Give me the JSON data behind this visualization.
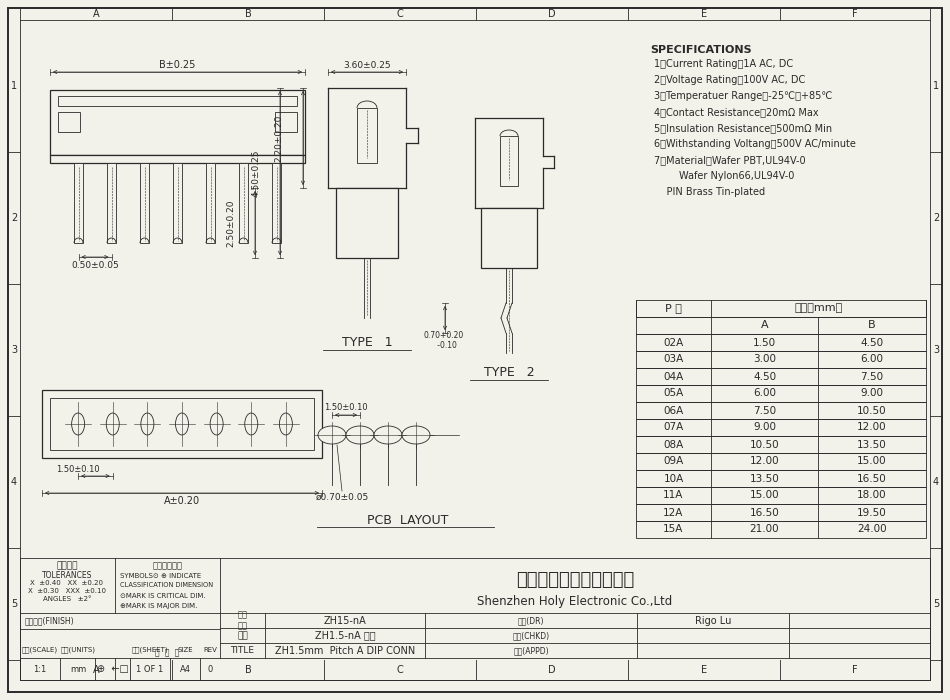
{
  "bg_color": "#f2f2ea",
  "line_color": "#2a2a2a",
  "specs": [
    "SPECIFICATIONS",
    "1、Current Rating：1A AC, DC",
    "2、Voltage Rating：100V AC, DC",
    "3、Temperatuer Range：-25℃～+85℃",
    "4、Contact Resistance：20mΩ Max",
    "5、Insulation Resistance：500mΩ Min",
    "6、Withstanding Voltang：500V AC/minute",
    "7、Material：Wafer PBT,UL94V-0",
    "        Wafer Nylon66,UL94V-0",
    "    PIN Brass Tin-plated"
  ],
  "table_data": [
    [
      "02A",
      "1.50",
      "4.50"
    ],
    [
      "03A",
      "3.00",
      "6.00"
    ],
    [
      "04A",
      "4.50",
      "7.50"
    ],
    [
      "05A",
      "6.00",
      "9.00"
    ],
    [
      "06A",
      "7.50",
      "10.50"
    ],
    [
      "07A",
      "9.00",
      "12.00"
    ],
    [
      "08A",
      "10.50",
      "13.50"
    ],
    [
      "09A",
      "12.00",
      "15.00"
    ],
    [
      "10A",
      "13.50",
      "16.50"
    ],
    [
      "11A",
      "15.00",
      "18.00"
    ],
    [
      "12A",
      "16.50",
      "19.50"
    ],
    [
      "15A",
      "21.00",
      "24.00"
    ]
  ],
  "company_cn": "深圳市宏利电子有限公司",
  "company_en": "Shenzhen Holy Electronic Co.,Ltd",
  "title_value": "ZH1.5mm  Pitch A DIP CONN",
  "part_no": "ZH15-nA",
  "part_name": "ZH1.5-nA 直针",
  "approver": "Rigo Lu",
  "scale": "1:1",
  "units": "mm",
  "sheet": "1 OF 1",
  "size": "A4",
  "rev": "0",
  "tolerances_line1": "TOLERANCES",
  "tolerances_line2": "X  ±0.40   XX  ±0.20",
  "tolerances_line3": "X  ±0.30   XXX  ±0.10",
  "tolerances_line4": "ANGLES   ±2°",
  "grid_cols": [
    "A",
    "B",
    "C",
    "D",
    "E",
    "F"
  ],
  "grid_rows": [
    "1",
    "2",
    "3",
    "4",
    "5"
  ],
  "type1_label": "TYPE   1",
  "type2_label": "TYPE   2",
  "pcb_label": "PCB  LAYOUT"
}
